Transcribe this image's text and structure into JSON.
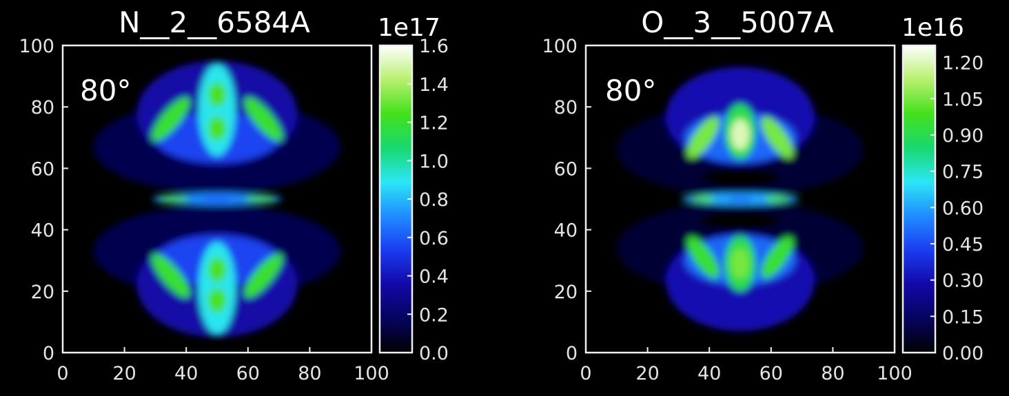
{
  "colormap": [
    "#000000",
    "#06045e",
    "#1208a8",
    "#1a3cf0",
    "#1f8cff",
    "#2ce6f5",
    "#18d86e",
    "#44e01c",
    "#b8f070",
    "#ffffff"
  ],
  "chart_data": [
    {
      "type": "heatmap",
      "title": "N__2__6584A",
      "angle_label": "80°",
      "xlim": [
        0,
        100
      ],
      "ylim": [
        0,
        100
      ],
      "xticks": [
        "0",
        "20",
        "40",
        "60",
        "80",
        "100"
      ],
      "yticks": [
        "0",
        "20",
        "40",
        "60",
        "80",
        "100"
      ],
      "xtick_values": [
        0,
        20,
        40,
        60,
        80,
        100
      ],
      "ytick_values": [
        0,
        20,
        40,
        60,
        80,
        100
      ],
      "colorbar": {
        "exponent_label": "1e17",
        "range": [
          0.0,
          1.6
        ],
        "ticks": [
          "0.0",
          "0.2",
          "0.4",
          "0.6",
          "0.8",
          "1.0",
          "1.2",
          "1.4",
          "1.6"
        ],
        "tick_values": [
          0.0,
          0.2,
          0.4,
          0.6,
          0.8,
          1.0,
          1.2,
          1.4,
          1.6
        ]
      },
      "features": [
        {
          "shape": "ellipse",
          "cx": 50,
          "cy": 67,
          "rx": 40,
          "ry": 15,
          "value": 0.15
        },
        {
          "shape": "ellipse",
          "cx": 50,
          "cy": 33,
          "rx": 40,
          "ry": 15,
          "value": 0.15
        },
        {
          "shape": "ellipse",
          "cx": 50,
          "cy": 78,
          "rx": 26,
          "ry": 17,
          "value": 0.35
        },
        {
          "shape": "ellipse",
          "cx": 50,
          "cy": 22,
          "rx": 26,
          "ry": 17,
          "value": 0.35
        },
        {
          "shape": "ellipse",
          "cx": 50,
          "cy": 70,
          "rx": 20,
          "ry": 8,
          "value": 0.55
        },
        {
          "shape": "ellipse",
          "cx": 50,
          "cy": 30,
          "rx": 20,
          "ry": 8,
          "value": 0.55
        },
        {
          "shape": "ellipse",
          "cx": 50,
          "cy": 79,
          "rx": 6,
          "ry": 15,
          "value": 0.9
        },
        {
          "shape": "ellipse",
          "cx": 50,
          "cy": 21,
          "rx": 6,
          "ry": 15,
          "value": 0.9
        },
        {
          "shape": "ellipse",
          "cx": 50,
          "cy": 84,
          "rx": 3,
          "ry": 4,
          "value": 1.25
        },
        {
          "shape": "ellipse",
          "cx": 50,
          "cy": 73,
          "rx": 3,
          "ry": 4,
          "value": 1.25
        },
        {
          "shape": "ellipse",
          "cx": 50,
          "cy": 27,
          "rx": 3,
          "ry": 4,
          "value": 1.25
        },
        {
          "shape": "ellipse",
          "cx": 50,
          "cy": 17,
          "rx": 3,
          "ry": 4,
          "value": 1.25
        },
        {
          "shape": "ellipse",
          "cx": 35,
          "cy": 76,
          "rx": 3,
          "ry": 9,
          "rot": -40,
          "value": 1.2
        },
        {
          "shape": "ellipse",
          "cx": 65,
          "cy": 76,
          "rx": 3,
          "ry": 9,
          "rot": 40,
          "value": 1.2
        },
        {
          "shape": "ellipse",
          "cx": 35,
          "cy": 25,
          "rx": 3,
          "ry": 9,
          "rot": 40,
          "value": 1.2
        },
        {
          "shape": "ellipse",
          "cx": 65,
          "cy": 25,
          "rx": 3,
          "ry": 9,
          "rot": -40,
          "value": 1.2
        },
        {
          "shape": "ellipse",
          "cx": 50,
          "cy": 50,
          "rx": 21,
          "ry": 2,
          "value": 0.7
        },
        {
          "shape": "ellipse",
          "cx": 36,
          "cy": 50,
          "rx": 5,
          "ry": 1,
          "value": 1.25
        },
        {
          "shape": "ellipse",
          "cx": 64,
          "cy": 50,
          "rx": 5,
          "ry": 1,
          "value": 1.25
        },
        {
          "shape": "ellipse",
          "cx": 50,
          "cy": 50,
          "rx": 5,
          "ry": 0.8,
          "value": 0.6
        }
      ]
    },
    {
      "type": "heatmap",
      "title": "O__3__5007A",
      "angle_label": "80°",
      "xlim": [
        0,
        100
      ],
      "ylim": [
        0,
        100
      ],
      "xticks": [
        "0",
        "20",
        "40",
        "60",
        "80",
        "100"
      ],
      "yticks": [
        "0",
        "20",
        "40",
        "60",
        "80",
        "100"
      ],
      "xtick_values": [
        0,
        20,
        40,
        60,
        80,
        100
      ],
      "ytick_values": [
        0,
        20,
        40,
        60,
        80,
        100
      ],
      "colorbar": {
        "exponent_label": "1e16",
        "range": [
          0.0,
          1.27
        ],
        "ticks": [
          "0.00",
          "0.15",
          "0.30",
          "0.45",
          "0.60",
          "0.75",
          "0.90",
          "1.05",
          "1.20"
        ],
        "tick_values": [
          0.0,
          0.15,
          0.3,
          0.45,
          0.6,
          0.75,
          0.9,
          1.05,
          1.2
        ]
      },
      "features": [
        {
          "shape": "ellipse",
          "cx": 50,
          "cy": 66,
          "rx": 40,
          "ry": 15,
          "value": 0.08
        },
        {
          "shape": "ellipse",
          "cx": 50,
          "cy": 34,
          "rx": 40,
          "ry": 15,
          "value": 0.08
        },
        {
          "shape": "ellipse",
          "cx": 50,
          "cy": 77,
          "rx": 24,
          "ry": 16,
          "value": 0.3
        },
        {
          "shape": "ellipse",
          "cx": 50,
          "cy": 23,
          "rx": 24,
          "ry": 16,
          "value": 0.3
        },
        {
          "shape": "ellipse",
          "cx": 50,
          "cy": 70,
          "rx": 18,
          "ry": 8,
          "value": 0.5
        },
        {
          "shape": "ellipse",
          "cx": 50,
          "cy": 30,
          "rx": 18,
          "ry": 8,
          "value": 0.5
        },
        {
          "shape": "ellipse",
          "cx": 50,
          "cy": 57,
          "rx": 13,
          "ry": 3,
          "value": 0.0
        },
        {
          "shape": "ellipse",
          "cx": 50,
          "cy": 43,
          "rx": 13,
          "ry": 3,
          "value": 0.0
        },
        {
          "shape": "ellipse",
          "cx": 50,
          "cy": 72,
          "rx": 5,
          "ry": 9,
          "value": 0.9
        },
        {
          "shape": "ellipse",
          "cx": 50,
          "cy": 29,
          "rx": 5,
          "ry": 9,
          "value": 0.9
        },
        {
          "shape": "ellipse",
          "cx": 50,
          "cy": 71,
          "rx": 3,
          "ry": 5,
          "value": 1.2
        },
        {
          "shape": "ellipse",
          "cx": 50,
          "cy": 29,
          "rx": 3,
          "ry": 5,
          "value": 1.05
        },
        {
          "shape": "ellipse",
          "cx": 38,
          "cy": 70,
          "rx": 3,
          "ry": 8,
          "rot": -35,
          "value": 1.05
        },
        {
          "shape": "ellipse",
          "cx": 62,
          "cy": 70,
          "rx": 3,
          "ry": 8,
          "rot": 35,
          "value": 1.05
        },
        {
          "shape": "ellipse",
          "cx": 38,
          "cy": 31,
          "rx": 3,
          "ry": 8,
          "rot": 35,
          "value": 0.95
        },
        {
          "shape": "ellipse",
          "cx": 62,
          "cy": 31,
          "rx": 3,
          "ry": 8,
          "rot": -35,
          "value": 0.95
        },
        {
          "shape": "ellipse",
          "cx": 50,
          "cy": 50,
          "rx": 19,
          "ry": 2,
          "value": 0.6
        },
        {
          "shape": "ellipse",
          "cx": 38,
          "cy": 50,
          "rx": 4,
          "ry": 1,
          "value": 1.0
        },
        {
          "shape": "ellipse",
          "cx": 62,
          "cy": 50,
          "rx": 4,
          "ry": 1,
          "value": 1.0
        },
        {
          "shape": "ellipse",
          "cx": 50,
          "cy": 50,
          "rx": 4,
          "ry": 0.8,
          "value": 0.5
        }
      ]
    }
  ]
}
